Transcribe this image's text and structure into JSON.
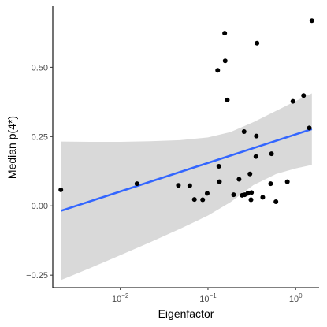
{
  "chart_data": {
    "type": "scatter",
    "xlabel": "Eigenfactor",
    "ylabel": "Median p(4*)",
    "x_scale": "log10",
    "xlim": [
      0.0017,
      1.85
    ],
    "ylim": [
      -0.295,
      0.72
    ],
    "x_ticks": [
      {
        "value": 0.01,
        "base": "10",
        "exp": "−2"
      },
      {
        "value": 0.1,
        "base": "10",
        "exp": "−1"
      },
      {
        "value": 1,
        "base": "10",
        "exp": "0"
      }
    ],
    "y_ticks": [
      {
        "value": -0.25,
        "label": "−0.25"
      },
      {
        "value": 0.0,
        "label": "0.00"
      },
      {
        "value": 0.25,
        "label": "0.25"
      },
      {
        "value": 0.5,
        "label": "0.50"
      }
    ],
    "grid": false,
    "point_color": "#000000",
    "line_color": "#3366ff",
    "band_color": "#d9d9d9",
    "series": [
      {
        "points": [
          {
            "x": 0.0021,
            "y": 0.058
          },
          {
            "x": 0.0155,
            "y": 0.08
          },
          {
            "x": 0.046,
            "y": 0.074
          },
          {
            "x": 0.062,
            "y": 0.073
          },
          {
            "x": 0.07,
            "y": 0.023
          },
          {
            "x": 0.087,
            "y": 0.022
          },
          {
            "x": 0.098,
            "y": 0.045
          },
          {
            "x": 0.129,
            "y": 0.489
          },
          {
            "x": 0.133,
            "y": 0.143
          },
          {
            "x": 0.135,
            "y": 0.087
          },
          {
            "x": 0.155,
            "y": 0.623
          },
          {
            "x": 0.157,
            "y": 0.523
          },
          {
            "x": 0.166,
            "y": 0.382
          },
          {
            "x": 0.196,
            "y": 0.04
          },
          {
            "x": 0.226,
            "y": 0.096
          },
          {
            "x": 0.245,
            "y": 0.038
          },
          {
            "x": 0.258,
            "y": 0.268
          },
          {
            "x": 0.262,
            "y": 0.04
          },
          {
            "x": 0.284,
            "y": 0.045
          },
          {
            "x": 0.301,
            "y": 0.115
          },
          {
            "x": 0.309,
            "y": 0.022
          },
          {
            "x": 0.313,
            "y": 0.048
          },
          {
            "x": 0.352,
            "y": 0.178
          },
          {
            "x": 0.356,
            "y": 0.252
          },
          {
            "x": 0.362,
            "y": 0.587
          },
          {
            "x": 0.421,
            "y": 0.031
          },
          {
            "x": 0.518,
            "y": 0.08
          },
          {
            "x": 0.53,
            "y": 0.188
          },
          {
            "x": 0.595,
            "y": 0.015
          },
          {
            "x": 0.803,
            "y": 0.087
          },
          {
            "x": 0.93,
            "y": 0.377
          },
          {
            "x": 1.23,
            "y": 0.398
          },
          {
            "x": 1.43,
            "y": 0.281
          },
          {
            "x": 1.53,
            "y": 0.668
          }
        ]
      }
    ],
    "fit_line": {
      "x": [
        0.0021,
        1.53
      ],
      "y": [
        -0.018,
        0.277
      ]
    },
    "confidence_band": {
      "x": [
        0.0021,
        0.0045,
        0.01,
        0.022,
        0.048,
        0.1,
        0.18,
        0.33,
        0.6,
        1.0,
        1.53
      ],
      "upper": [
        0.232,
        0.231,
        0.231,
        0.233,
        0.237,
        0.247,
        0.266,
        0.302,
        0.343,
        0.378,
        0.406
      ],
      "lower": [
        -0.268,
        -0.225,
        -0.178,
        -0.131,
        -0.083,
        -0.035,
        0.013,
        0.075,
        0.115,
        0.135,
        0.148
      ]
    }
  }
}
